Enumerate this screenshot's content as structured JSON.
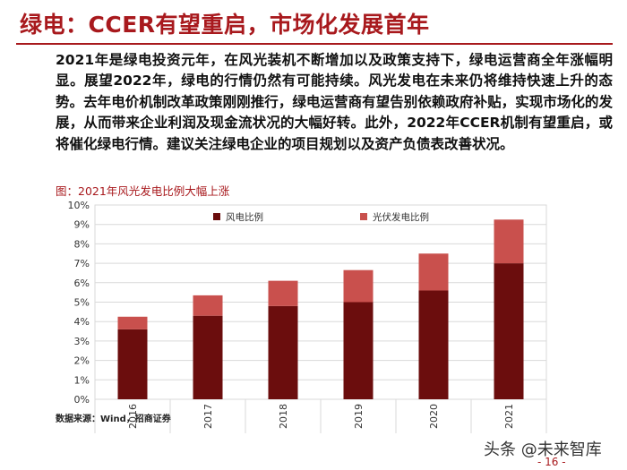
{
  "header": {
    "title": "绿电：CCER有望重启，市场化发展首年"
  },
  "body": {
    "paragraph": "2021年是绿电投资元年，在风光装机不断增加以及政策支持下，绿电运营商全年涨幅明显。展望2022年，绿电的行情仍然有可能持续。风光发电在未来仍将维持快速上升的态势。去年电价机制改革政策刚刚推行，绿电运营商有望告别依赖政府补贴，实现市场化的发展，从而带来企业利润及现金流状况的大幅好转。此外，2022年CCER机制有望重启，或将催化绿电行情。建议关注绿电企业的项目规划以及资产负债表改善状况。"
  },
  "figure": {
    "caption": "图：2021年风光发电比例大幅上涨",
    "source": "数据来源：Wind，招商证券"
  },
  "footer": {
    "watermark": "头条 @未来智库",
    "page_number": "- 16 -"
  },
  "colors": {
    "accent": "#a8191d",
    "wind": "#6b0d0d",
    "solar": "#c9504d"
  },
  "chart_data": {
    "type": "bar",
    "stacked": true,
    "categories": [
      "2016",
      "2017",
      "2018",
      "2019",
      "2020",
      "2021"
    ],
    "series": [
      {
        "name": "风电比例",
        "values": [
          3.6,
          4.3,
          4.8,
          5.0,
          5.6,
          7.0
        ]
      },
      {
        "name": "光伏发电比例",
        "values": [
          0.65,
          1.05,
          1.3,
          1.65,
          1.9,
          2.25
        ]
      }
    ],
    "yticks": [
      "0%",
      "1%",
      "2%",
      "3%",
      "4%",
      "5%",
      "6%",
      "7%",
      "8%",
      "9%",
      "10%"
    ],
    "ylim": [
      0,
      10
    ],
    "y_unit": "%",
    "grid": true,
    "legend_position": "top"
  }
}
